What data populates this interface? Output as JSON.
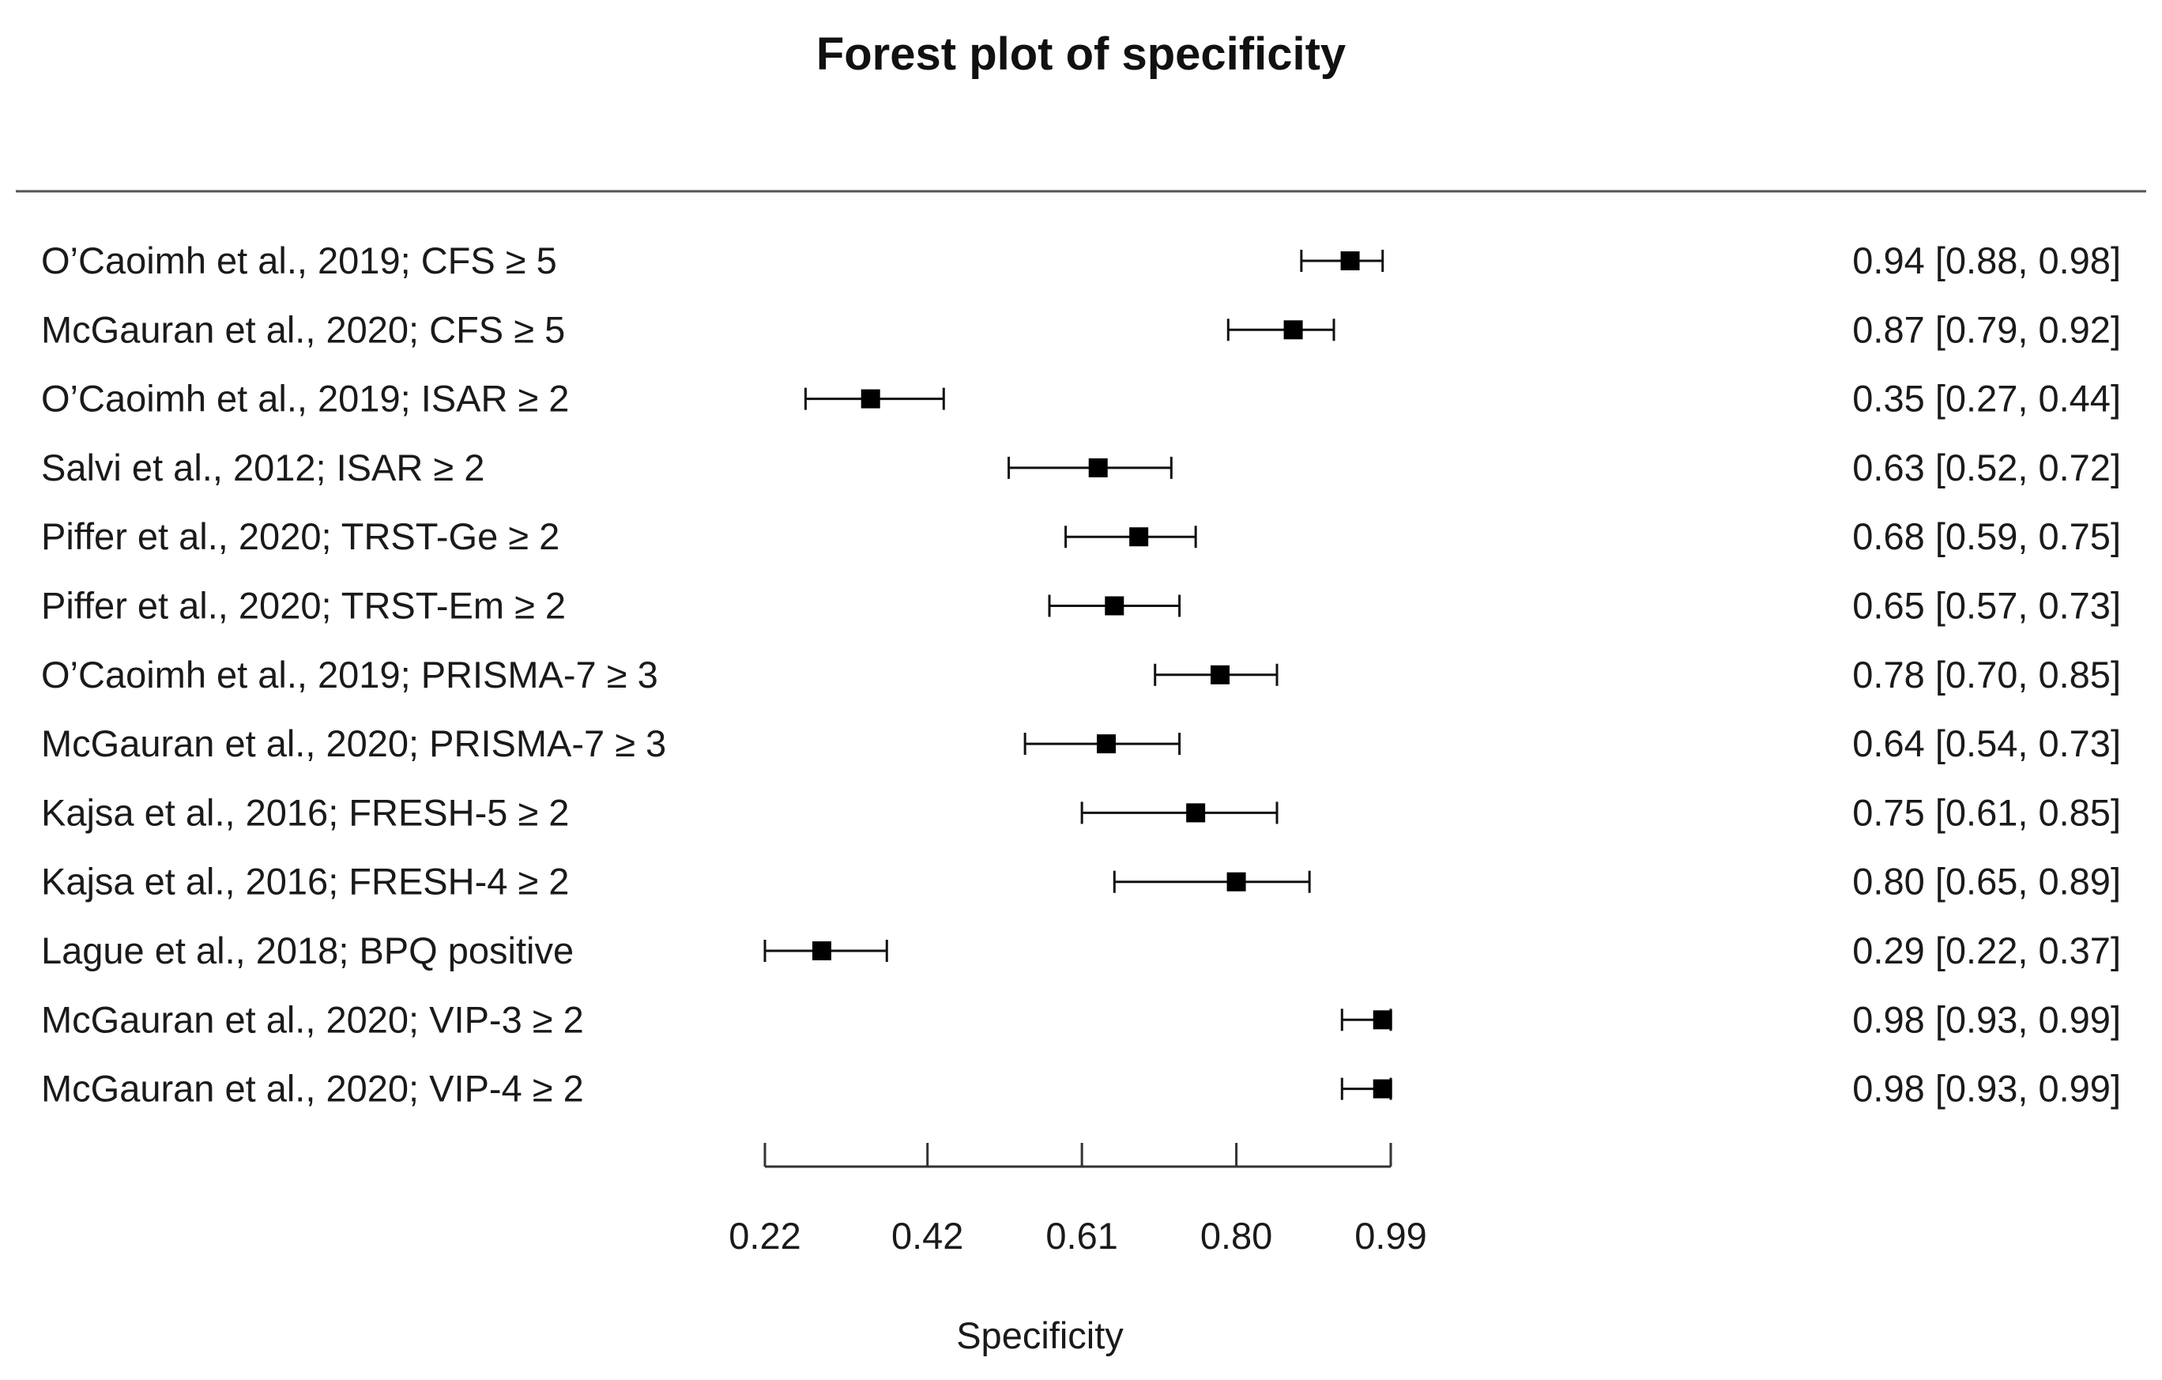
{
  "chart_data": {
    "type": "forest",
    "title": "Forest plot of specificity",
    "xlabel": "Specificity",
    "xlim": [
      0.22,
      0.99
    ],
    "xticks": [
      0.22,
      0.42,
      0.61,
      0.8,
      0.99
    ],
    "xtick_labels": [
      "0.22",
      "0.42",
      "0.61",
      "0.80",
      "0.99"
    ],
    "studies": [
      {
        "label": "O’Caoimh et al., 2019; CFS ≥ 5",
        "estimate": 0.94,
        "lower": 0.88,
        "upper": 0.98,
        "ci_text": "0.94 [0.88, 0.98]"
      },
      {
        "label": "McGauran et al., 2020; CFS ≥ 5",
        "estimate": 0.87,
        "lower": 0.79,
        "upper": 0.92,
        "ci_text": "0.87 [0.79, 0.92]"
      },
      {
        "label": "O’Caoimh et al., 2019; ISAR ≥ 2",
        "estimate": 0.35,
        "lower": 0.27,
        "upper": 0.44,
        "ci_text": "0.35 [0.27, 0.44]"
      },
      {
        "label": "Salvi et al., 2012; ISAR ≥ 2",
        "estimate": 0.63,
        "lower": 0.52,
        "upper": 0.72,
        "ci_text": "0.63 [0.52, 0.72]"
      },
      {
        "label": "Piffer et al., 2020; TRST-Ge ≥ 2",
        "estimate": 0.68,
        "lower": 0.59,
        "upper": 0.75,
        "ci_text": "0.68 [0.59, 0.75]"
      },
      {
        "label": "Piffer et al., 2020; TRST-Em ≥ 2",
        "estimate": 0.65,
        "lower": 0.57,
        "upper": 0.73,
        "ci_text": "0.65 [0.57, 0.73]"
      },
      {
        "label": "O’Caoimh et al., 2019; PRISMA-7 ≥ 3",
        "estimate": 0.78,
        "lower": 0.7,
        "upper": 0.85,
        "ci_text": "0.78 [0.70, 0.85]"
      },
      {
        "label": "McGauran et al., 2020; PRISMA-7 ≥ 3",
        "estimate": 0.64,
        "lower": 0.54,
        "upper": 0.73,
        "ci_text": "0.64 [0.54, 0.73]"
      },
      {
        "label": "Kajsa et al., 2016; FRESH-5 ≥ 2",
        "estimate": 0.75,
        "lower": 0.61,
        "upper": 0.85,
        "ci_text": "0.75 [0.61, 0.85]"
      },
      {
        "label": "Kajsa et al., 2016; FRESH-4 ≥ 2",
        "estimate": 0.8,
        "lower": 0.65,
        "upper": 0.89,
        "ci_text": "0.80 [0.65, 0.89]"
      },
      {
        "label": "Lague et al., 2018; BPQ positive",
        "estimate": 0.29,
        "lower": 0.22,
        "upper": 0.37,
        "ci_text": "0.29 [0.22, 0.37]"
      },
      {
        "label": "McGauran et al., 2020; VIP-3 ≥ 2",
        "estimate": 0.98,
        "lower": 0.93,
        "upper": 0.99,
        "ci_text": "0.98 [0.93, 0.99]"
      },
      {
        "label": "McGauran et al., 2020; VIP-4 ≥ 2",
        "estimate": 0.98,
        "lower": 0.93,
        "upper": 0.99,
        "ci_text": "0.98 [0.93, 0.99]"
      }
    ],
    "grid": false,
    "legend": "none"
  },
  "colors": {
    "background": "#ffffff",
    "marker": "#000000",
    "text": "#111111",
    "rule": "#555555"
  }
}
